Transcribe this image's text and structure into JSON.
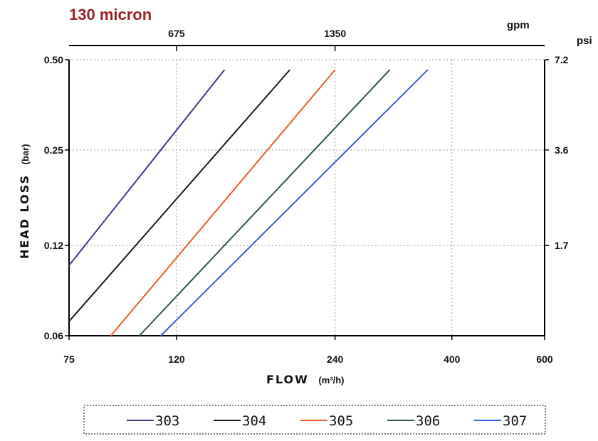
{
  "chart_data": {
    "type": "line",
    "title": "130 micron",
    "xlabel": "FLOW",
    "xlabel_unit": "(m³/h)",
    "ylabel": "HEAD LOSS",
    "ylabel_unit": "(bar)",
    "x_scale": "log",
    "y_scale": "log",
    "xlim": [
      75,
      600
    ],
    "ylim": [
      0.06,
      0.5
    ],
    "x_ticks": [
      "75",
      "120",
      "240",
      "400",
      "600"
    ],
    "x_tick_values": [
      75,
      120,
      240,
      400,
      600
    ],
    "y_ticks": [
      "0.06",
      "0.12",
      "0.25",
      "0.50"
    ],
    "y_tick_values": [
      0.06,
      0.12,
      0.25,
      0.5
    ],
    "secondary_x_unit": "gpm",
    "secondary_x_ticks": [
      "675",
      "1350"
    ],
    "secondary_x_tick_values": [
      675,
      1350
    ],
    "secondary_x_tick_positions_m3h": [
      120,
      240
    ],
    "secondary_y_unit": "psi",
    "secondary_y_ticks": [
      "7.2",
      "3.6",
      "1.7"
    ],
    "secondary_y_tick_positions_bar": [
      0.5,
      0.25,
      0.12
    ],
    "grid": true,
    "legend_position": "bottom",
    "series": [
      {
        "name": "303",
        "color": "#3b3a8c",
        "x": [
          75,
          148
        ],
        "y": [
          0.103,
          0.463
        ]
      },
      {
        "name": "304",
        "color": "#1a1a1a",
        "x": [
          75,
          197
        ],
        "y": [
          0.067,
          0.463
        ]
      },
      {
        "name": "305",
        "color": "#f05a28",
        "x": [
          90,
          240
        ],
        "y": [
          0.06,
          0.463
        ]
      },
      {
        "name": "306",
        "color": "#2d5a3d",
        "x": [
          102,
          305
        ],
        "y": [
          0.06,
          0.463
        ]
      },
      {
        "name": "307",
        "color": "#3a5fcd",
        "x": [
          112,
          360
        ],
        "y": [
          0.06,
          0.463
        ]
      }
    ]
  }
}
